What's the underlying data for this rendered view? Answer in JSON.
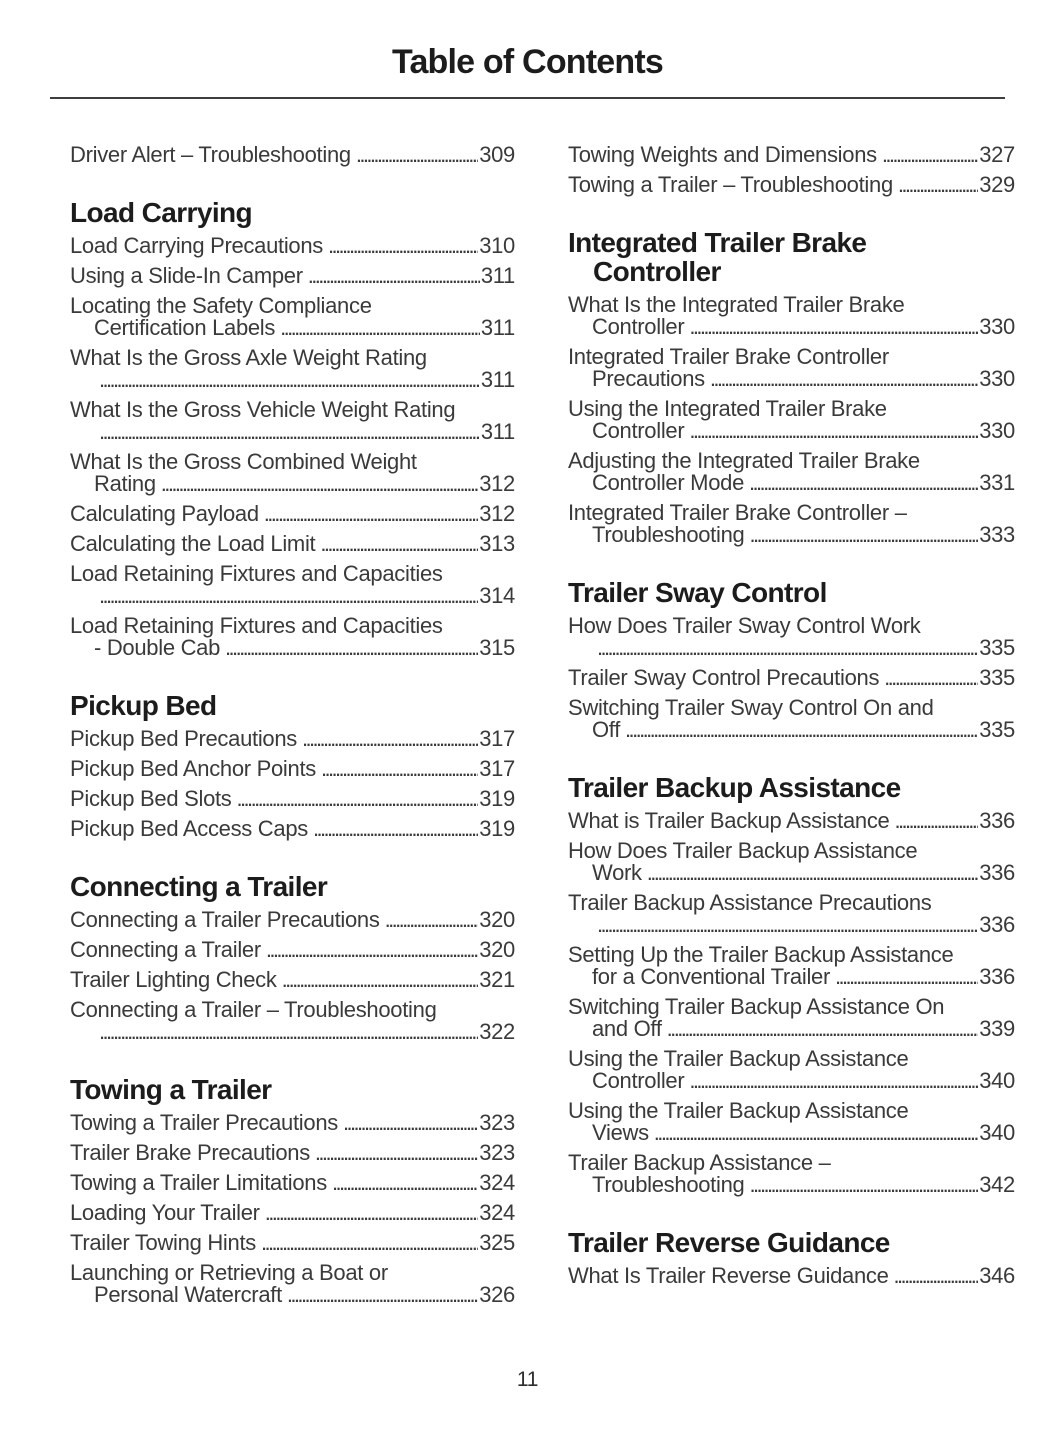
{
  "document": {
    "title": "Table of Contents",
    "page_number": "11"
  },
  "colors": {
    "background": "#ffffff",
    "body_ink": "#3a3a3a",
    "heading_ink": "#1c1c1c",
    "rule": "#3f3f3f"
  },
  "toc": {
    "columns": [
      {
        "blocks": [
          {
            "entries": [
              {
                "lines": [
                  "Driver Alert – Troubleshooting"
                ],
                "page": "309"
              }
            ]
          },
          {
            "heading_lines": [
              "Load Carrying"
            ],
            "entries": [
              {
                "lines": [
                  "Load Carrying Precautions"
                ],
                "page": "310"
              },
              {
                "lines": [
                  "Using a Slide-In Camper"
                ],
                "page": "311"
              },
              {
                "lines": [
                  "Locating the Safety Compliance",
                  "Certification Labels"
                ],
                "page": "311"
              },
              {
                "lines": [
                  "What Is the Gross Axle Weight Rating",
                  ""
                ],
                "page": "311"
              },
              {
                "lines": [
                  "What Is the Gross Vehicle Weight Rating",
                  ""
                ],
                "page": "311"
              },
              {
                "lines": [
                  "What Is the Gross Combined Weight",
                  "Rating"
                ],
                "page": "312"
              },
              {
                "lines": [
                  "Calculating Payload"
                ],
                "page": "312"
              },
              {
                "lines": [
                  "Calculating the Load Limit"
                ],
                "page": "313"
              },
              {
                "lines": [
                  "Load Retaining Fixtures and Capacities",
                  ""
                ],
                "page": "314"
              },
              {
                "lines": [
                  "Load Retaining Fixtures and Capacities",
                  "- Double Cab"
                ],
                "page": "315"
              }
            ]
          },
          {
            "heading_lines": [
              "Pickup Bed"
            ],
            "entries": [
              {
                "lines": [
                  "Pickup Bed Precautions"
                ],
                "page": "317"
              },
              {
                "lines": [
                  "Pickup Bed Anchor Points"
                ],
                "page": "317"
              },
              {
                "lines": [
                  "Pickup Bed Slots"
                ],
                "page": "319"
              },
              {
                "lines": [
                  "Pickup Bed Access Caps"
                ],
                "page": "319"
              }
            ]
          },
          {
            "heading_lines": [
              "Connecting a Trailer"
            ],
            "entries": [
              {
                "lines": [
                  "Connecting a Trailer Precautions"
                ],
                "page": "320"
              },
              {
                "lines": [
                  "Connecting a Trailer"
                ],
                "page": "320"
              },
              {
                "lines": [
                  "Trailer Lighting Check"
                ],
                "page": "321"
              },
              {
                "lines": [
                  "Connecting a Trailer – Troubleshooting",
                  ""
                ],
                "page": "322"
              }
            ]
          },
          {
            "heading_lines": [
              "Towing a Trailer"
            ],
            "entries": [
              {
                "lines": [
                  "Towing a Trailer Precautions"
                ],
                "page": "323"
              },
              {
                "lines": [
                  "Trailer Brake Precautions"
                ],
                "page": "323"
              },
              {
                "lines": [
                  "Towing a Trailer Limitations"
                ],
                "page": "324"
              },
              {
                "lines": [
                  "Loading Your Trailer"
                ],
                "page": "324"
              },
              {
                "lines": [
                  "Trailer Towing Hints"
                ],
                "page": "325"
              },
              {
                "lines": [
                  "Launching or Retrieving a Boat or",
                  "Personal Watercraft"
                ],
                "page": "326"
              }
            ]
          }
        ]
      },
      {
        "blocks": [
          {
            "entries": [
              {
                "lines": [
                  "Towing Weights and Dimensions"
                ],
                "page": "327"
              },
              {
                "lines": [
                  "Towing a Trailer – Troubleshooting"
                ],
                "page": "329"
              }
            ]
          },
          {
            "heading_lines": [
              "Integrated Trailer Brake",
              "Controller"
            ],
            "entries": [
              {
                "lines": [
                  "What Is the Integrated Trailer Brake",
                  "Controller"
                ],
                "page": "330"
              },
              {
                "lines": [
                  "Integrated Trailer Brake Controller",
                  "Precautions"
                ],
                "page": "330"
              },
              {
                "lines": [
                  "Using the Integrated Trailer Brake",
                  "Controller"
                ],
                "page": "330"
              },
              {
                "lines": [
                  "Adjusting the Integrated Trailer Brake",
                  "Controller Mode"
                ],
                "page": "331"
              },
              {
                "lines": [
                  "Integrated Trailer Brake Controller –",
                  "Troubleshooting"
                ],
                "page": "333"
              }
            ]
          },
          {
            "heading_lines": [
              "Trailer Sway Control"
            ],
            "entries": [
              {
                "lines": [
                  "How Does Trailer Sway Control Work",
                  ""
                ],
                "page": "335"
              },
              {
                "lines": [
                  "Trailer Sway Control Precautions"
                ],
                "page": "335"
              },
              {
                "lines": [
                  "Switching Trailer Sway Control On and",
                  "Off"
                ],
                "page": "335"
              }
            ]
          },
          {
            "heading_lines": [
              "Trailer Backup Assistance"
            ],
            "entries": [
              {
                "lines": [
                  "What is Trailer Backup Assistance"
                ],
                "page": "336"
              },
              {
                "lines": [
                  "How Does Trailer Backup Assistance",
                  "Work"
                ],
                "page": "336"
              },
              {
                "lines": [
                  "Trailer Backup Assistance Precautions",
                  ""
                ],
                "page": "336"
              },
              {
                "lines": [
                  "Setting Up the Trailer Backup Assistance",
                  "for a Conventional Trailer"
                ],
                "page": "336"
              },
              {
                "lines": [
                  "Switching Trailer Backup Assistance On",
                  "and Off"
                ],
                "page": "339"
              },
              {
                "lines": [
                  "Using the Trailer Backup Assistance",
                  "Controller"
                ],
                "page": "340"
              },
              {
                "lines": [
                  "Using the Trailer Backup Assistance",
                  "Views"
                ],
                "page": "340"
              },
              {
                "lines": [
                  "Trailer Backup Assistance –",
                  "Troubleshooting"
                ],
                "page": "342"
              }
            ]
          },
          {
            "heading_lines": [
              "Trailer Reverse Guidance"
            ],
            "entries": [
              {
                "lines": [
                  "What Is Trailer Reverse Guidance"
                ],
                "page": "346"
              }
            ]
          }
        ]
      }
    ]
  }
}
